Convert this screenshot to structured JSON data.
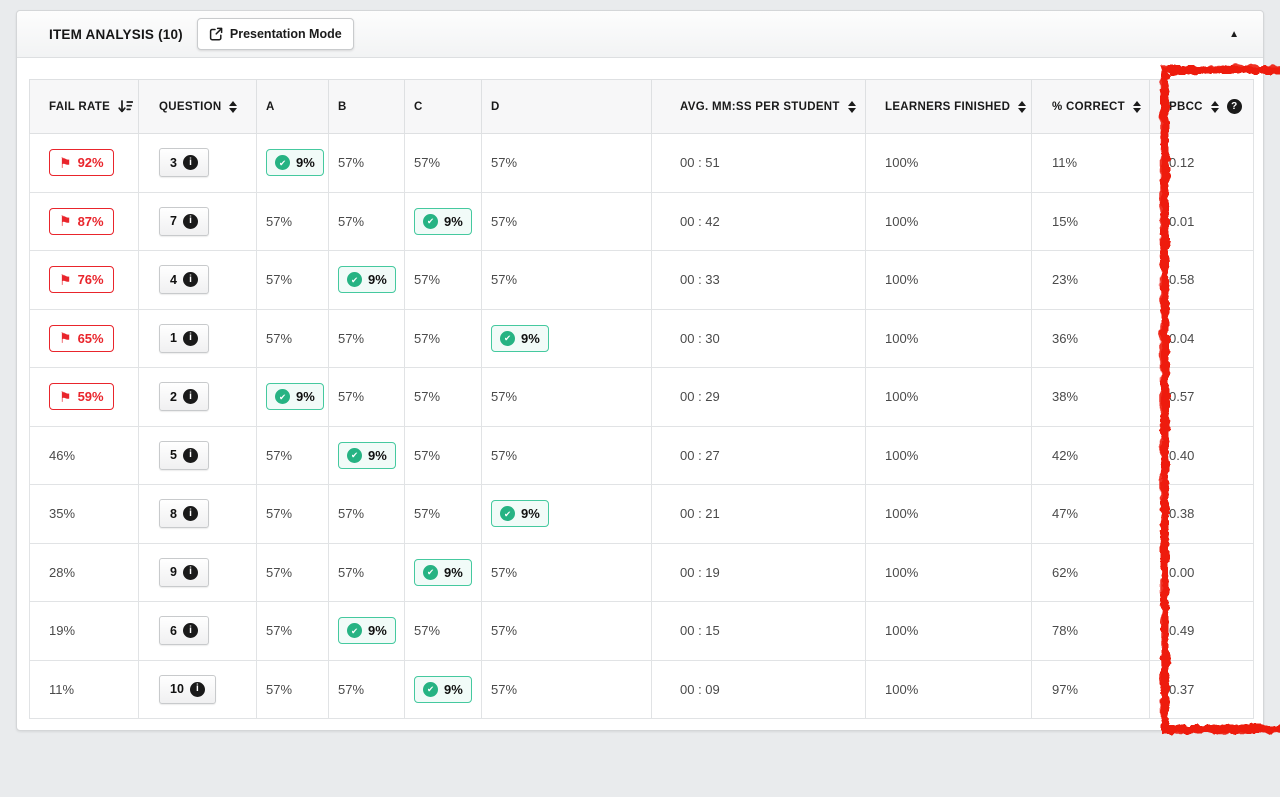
{
  "panel": {
    "title": "ITEM ANALYSIS (10)",
    "presentation_mode_label": "Presentation Mode"
  },
  "glyphs": {
    "flag": "⚑",
    "caret_up": "▲",
    "check": "✔",
    "info": "i",
    "help": "?"
  },
  "icons": {
    "presentation_mode": "external-link-icon",
    "collapse": "caret-up-icon",
    "fail_flag": "flag-icon",
    "question_info": "info-circle-icon",
    "correct_answer": "check-circle-icon",
    "pbcc_help": "question-circle-icon",
    "fail_rate_sort": "sort-amount-desc-icon",
    "column_sort": "sort-updown-icon"
  },
  "colors": {
    "accent_red": "#e9252c",
    "annotation_red": "#ee1a0e",
    "green_border": "#45c99f",
    "green_icon": "#26b383",
    "green_bg": "#f1fbf8"
  },
  "table": {
    "columns": [
      {
        "key": "fail_rate",
        "label": "FAIL RATE",
        "sort": "amount-desc"
      },
      {
        "key": "question",
        "label": "QUESTION",
        "sort": "updown"
      },
      {
        "key": "a",
        "label": "A",
        "sort": "none"
      },
      {
        "key": "b",
        "label": "B",
        "sort": "none"
      },
      {
        "key": "c",
        "label": "C",
        "sort": "none"
      },
      {
        "key": "d",
        "label": "D",
        "sort": "none"
      },
      {
        "key": "avg_time",
        "label": "AVG. MM:SS PER STUDENT",
        "sort": "updown"
      },
      {
        "key": "learners_finished",
        "label": "LEARNERS FINISHED",
        "sort": "updown"
      },
      {
        "key": "pct_correct",
        "label": "% CORRECT",
        "sort": "updown"
      },
      {
        "key": "pbcc",
        "label": "PBCC",
        "sort": "updown",
        "help": true
      }
    ],
    "rows": [
      {
        "fail_rate": "92%",
        "flagged": true,
        "question": "3",
        "answers": [
          {
            "label": "A",
            "value": "9%",
            "correct": true
          },
          {
            "label": "B",
            "value": "57%",
            "correct": false
          },
          {
            "label": "C",
            "value": "57%",
            "correct": false
          },
          {
            "label": "D",
            "value": "57%",
            "correct": false
          }
        ],
        "avg_time": "00 : 51",
        "learners_finished": "100%",
        "pct_correct": "11%",
        "pbcc": "0.12"
      },
      {
        "fail_rate": "87%",
        "flagged": true,
        "question": "7",
        "answers": [
          {
            "label": "A",
            "value": "57%",
            "correct": false
          },
          {
            "label": "B",
            "value": "57%",
            "correct": false
          },
          {
            "label": "C",
            "value": "9%",
            "correct": true
          },
          {
            "label": "D",
            "value": "57%",
            "correct": false
          }
        ],
        "avg_time": "00 : 42",
        "learners_finished": "100%",
        "pct_correct": "15%",
        "pbcc": "0.01"
      },
      {
        "fail_rate": "76%",
        "flagged": true,
        "question": "4",
        "answers": [
          {
            "label": "A",
            "value": "57%",
            "correct": false
          },
          {
            "label": "B",
            "value": "9%",
            "correct": true
          },
          {
            "label": "C",
            "value": "57%",
            "correct": false
          },
          {
            "label": "D",
            "value": "57%",
            "correct": false
          }
        ],
        "avg_time": "00 : 33",
        "learners_finished": "100%",
        "pct_correct": "23%",
        "pbcc": "0.58"
      },
      {
        "fail_rate": "65%",
        "flagged": true,
        "question": "1",
        "answers": [
          {
            "label": "A",
            "value": "57%",
            "correct": false
          },
          {
            "label": "B",
            "value": "57%",
            "correct": false
          },
          {
            "label": "C",
            "value": "57%",
            "correct": false
          },
          {
            "label": "D",
            "value": "9%",
            "correct": true
          }
        ],
        "avg_time": "00 : 30",
        "learners_finished": "100%",
        "pct_correct": "36%",
        "pbcc": "0.04"
      },
      {
        "fail_rate": "59%",
        "flagged": true,
        "question": "2",
        "answers": [
          {
            "label": "A",
            "value": "9%",
            "correct": true
          },
          {
            "label": "B",
            "value": "57%",
            "correct": false
          },
          {
            "label": "C",
            "value": "57%",
            "correct": false
          },
          {
            "label": "D",
            "value": "57%",
            "correct": false
          }
        ],
        "avg_time": "00 : 29",
        "learners_finished": "100%",
        "pct_correct": "38%",
        "pbcc": "0.57"
      },
      {
        "fail_rate": "46%",
        "flagged": false,
        "question": "5",
        "answers": [
          {
            "label": "A",
            "value": "57%",
            "correct": false
          },
          {
            "label": "B",
            "value": "9%",
            "correct": true
          },
          {
            "label": "C",
            "value": "57%",
            "correct": false
          },
          {
            "label": "D",
            "value": "57%",
            "correct": false
          }
        ],
        "avg_time": "00 : 27",
        "learners_finished": "100%",
        "pct_correct": "42%",
        "pbcc": "0.40"
      },
      {
        "fail_rate": "35%",
        "flagged": false,
        "question": "8",
        "answers": [
          {
            "label": "A",
            "value": "57%",
            "correct": false
          },
          {
            "label": "B",
            "value": "57%",
            "correct": false
          },
          {
            "label": "C",
            "value": "57%",
            "correct": false
          },
          {
            "label": "D",
            "value": "9%",
            "correct": true
          }
        ],
        "avg_time": "00 : 21",
        "learners_finished": "100%",
        "pct_correct": "47%",
        "pbcc": "0.38"
      },
      {
        "fail_rate": "28%",
        "flagged": false,
        "question": "9",
        "answers": [
          {
            "label": "A",
            "value": "57%",
            "correct": false
          },
          {
            "label": "B",
            "value": "57%",
            "correct": false
          },
          {
            "label": "C",
            "value": "9%",
            "correct": true
          },
          {
            "label": "D",
            "value": "57%",
            "correct": false
          }
        ],
        "avg_time": "00 : 19",
        "learners_finished": "100%",
        "pct_correct": "62%",
        "pbcc": "0.00"
      },
      {
        "fail_rate": "19%",
        "flagged": false,
        "question": "6",
        "answers": [
          {
            "label": "A",
            "value": "57%",
            "correct": false
          },
          {
            "label": "B",
            "value": "9%",
            "correct": true
          },
          {
            "label": "C",
            "value": "57%",
            "correct": false
          },
          {
            "label": "D",
            "value": "57%",
            "correct": false
          }
        ],
        "avg_time": "00 : 15",
        "learners_finished": "100%",
        "pct_correct": "78%",
        "pbcc": "0.49"
      },
      {
        "fail_rate": "11%",
        "flagged": false,
        "question": "10",
        "answers": [
          {
            "label": "A",
            "value": "57%",
            "correct": false
          },
          {
            "label": "B",
            "value": "57%",
            "correct": false
          },
          {
            "label": "C",
            "value": "9%",
            "correct": true
          },
          {
            "label": "D",
            "value": "57%",
            "correct": false
          }
        ],
        "avg_time": "00 : 09",
        "learners_finished": "100%",
        "pct_correct": "97%",
        "pbcc": "0.37"
      }
    ]
  },
  "annotation": {
    "type": "hand-drawn-box",
    "target": "pbcc-column",
    "color": "#ee1a0e"
  }
}
